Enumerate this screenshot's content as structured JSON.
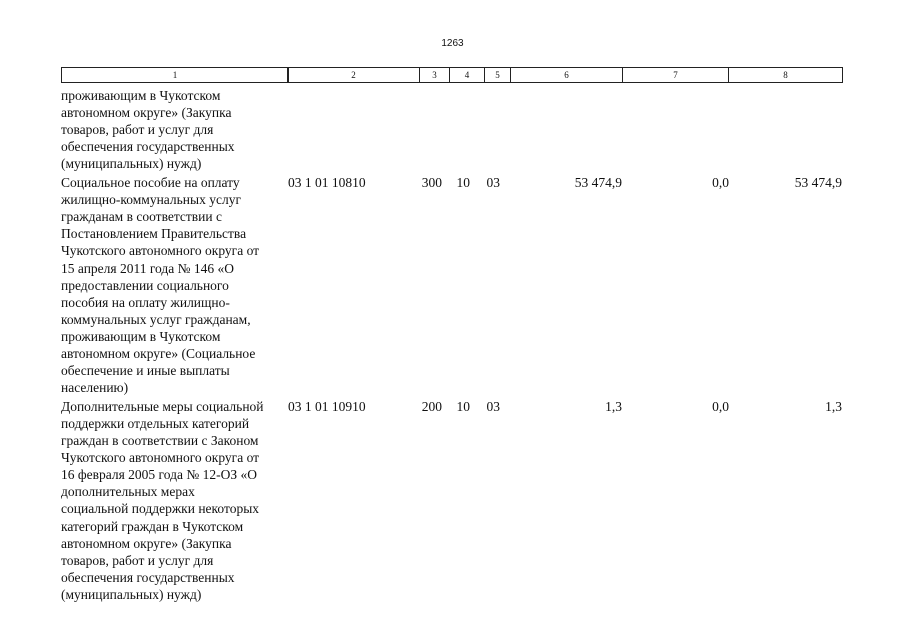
{
  "page_number": "1263",
  "table": {
    "header": [
      "1",
      "2",
      "3",
      "4",
      "5",
      "6",
      "7",
      "8"
    ],
    "rows": [
      {
        "description": [
          "проживающим в Чукотском",
          "автономном округе» (Закупка",
          "товаров, работ и услуг для",
          "обеспечения государственных",
          "(муниципальных) нужд)"
        ]
      },
      {
        "description": [
          "Социальное пособие на оплату",
          "жилищно-коммунальных услуг",
          "гражданам в соответствии с",
          "Постановлением Правительства",
          "Чукотского автономного округа от",
          "15 апреля 2011 года № 146 «О",
          "предоставлении социального",
          "пособия на оплату жилищно-",
          "коммунальных услуг гражданам,",
          "проживающим в Чукотском",
          "автономном округе» (Социальное",
          "обеспечение и иные выплаты",
          "населению)"
        ],
        "cells": [
          "03 1 01 10810",
          "300",
          "10",
          "03",
          "53 474,9",
          "0,0",
          "53 474,9"
        ]
      },
      {
        "description": [
          "Дополнительные меры социальной",
          "поддержки отдельных категорий",
          "граждан в соответствии с Законом",
          "Чукотского автономного округа от",
          "16 февраля 2005 года № 12-ОЗ «О",
          "дополнительных мерах",
          "социальной поддержки некоторых",
          "категорий граждан в Чукотском",
          "автономном округе» (Закупка",
          "товаров, работ и услуг для",
          "обеспечения государственных",
          "(муниципальных) нужд)"
        ],
        "cells": [
          "03 1 01 10910",
          "200",
          "10",
          "03",
          "1,3",
          "0,0",
          "1,3"
        ]
      }
    ]
  }
}
